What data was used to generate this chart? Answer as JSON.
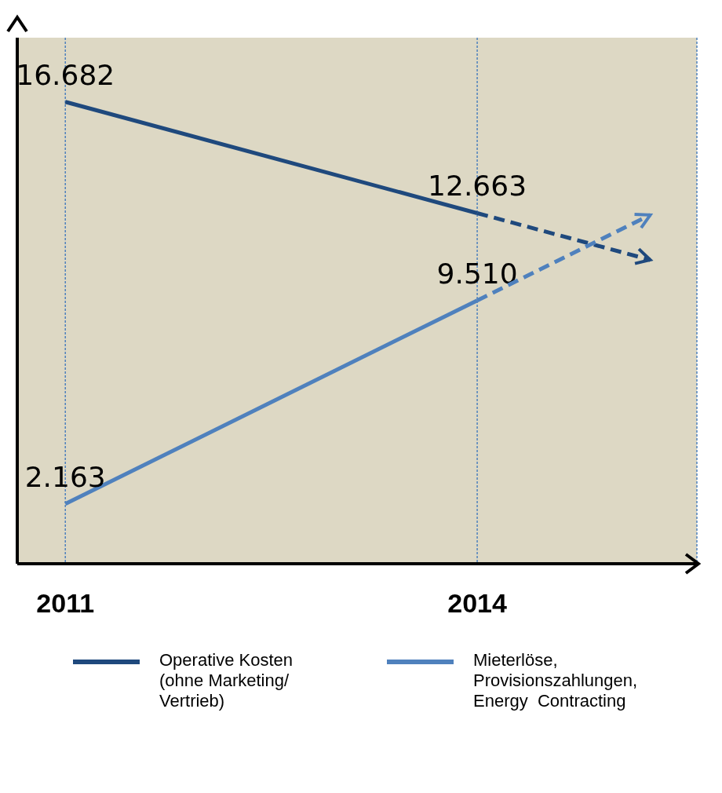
{
  "chart_data": {
    "type": "line",
    "x": [
      2011,
      2014
    ],
    "xlim": [
      2010.65,
      2015.6
    ],
    "xticks": [
      2011,
      2014
    ],
    "ylim": [
      0,
      19000
    ],
    "tick_labels": "x",
    "grid": "x",
    "marker": "none",
    "line_style": "solid",
    "legend": "bottom",
    "series": [
      {
        "name": "Operative Kosten (ohne Marketing/ Vertrieb)",
        "color": "#1f497d",
        "values": [
          16682,
          12663
        ],
        "value_labels": [
          "16.682",
          "12.663"
        ]
      },
      {
        "name": "Mieterlöse, Provisionszahlungen, Energy  Contracting",
        "color": "#4f81bd",
        "values": [
          2163,
          9510
        ],
        "value_labels": [
          "2.163",
          "9.510"
        ]
      }
    ]
  }
}
